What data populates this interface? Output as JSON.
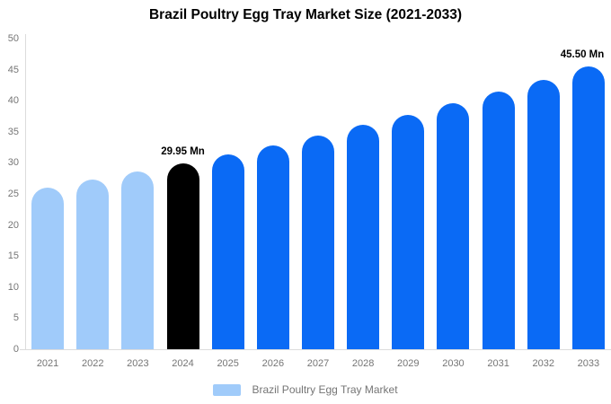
{
  "chart_data": {
    "type": "bar",
    "title": "Brazil Poultry Egg Tray Market Size (2021-2033)",
    "unit": "Mn",
    "categories": [
      "2021",
      "2022",
      "2023",
      "2024",
      "2025",
      "2026",
      "2027",
      "2028",
      "2029",
      "2030",
      "2031",
      "2032",
      "2033"
    ],
    "values": [
      26.05,
      27.29,
      28.59,
      29.95,
      31.37,
      32.86,
      34.42,
      36.06,
      37.77,
      39.56,
      41.44,
      43.41,
      45.5
    ],
    "ylim": [
      0,
      50
    ],
    "yticks": [
      0,
      5,
      10,
      15,
      20,
      25,
      30,
      35,
      40,
      45,
      50
    ],
    "grid": false,
    "legend": [
      "Brazil Poultry Egg Tray Market"
    ],
    "legend_position": "bottom",
    "annotations": [
      {
        "category": "2024",
        "text": "29.95 Mn"
      },
      {
        "category": "2033",
        "text": "45.50 Mn"
      }
    ],
    "colors": {
      "historical_bar": "#A0CBFA",
      "highlight_bar": "#000000",
      "forecast_bar": "#0A6AF5",
      "legend_swatch": "#A0CBFA",
      "title_text": "#000000",
      "axis_text": "#757575",
      "axis_line": "#DCDCDC",
      "annotation_text": "#000000"
    },
    "bar_color_keys": [
      "historical_bar",
      "historical_bar",
      "historical_bar",
      "highlight_bar",
      "forecast_bar",
      "forecast_bar",
      "forecast_bar",
      "forecast_bar",
      "forecast_bar",
      "forecast_bar",
      "forecast_bar",
      "forecast_bar",
      "forecast_bar"
    ]
  }
}
